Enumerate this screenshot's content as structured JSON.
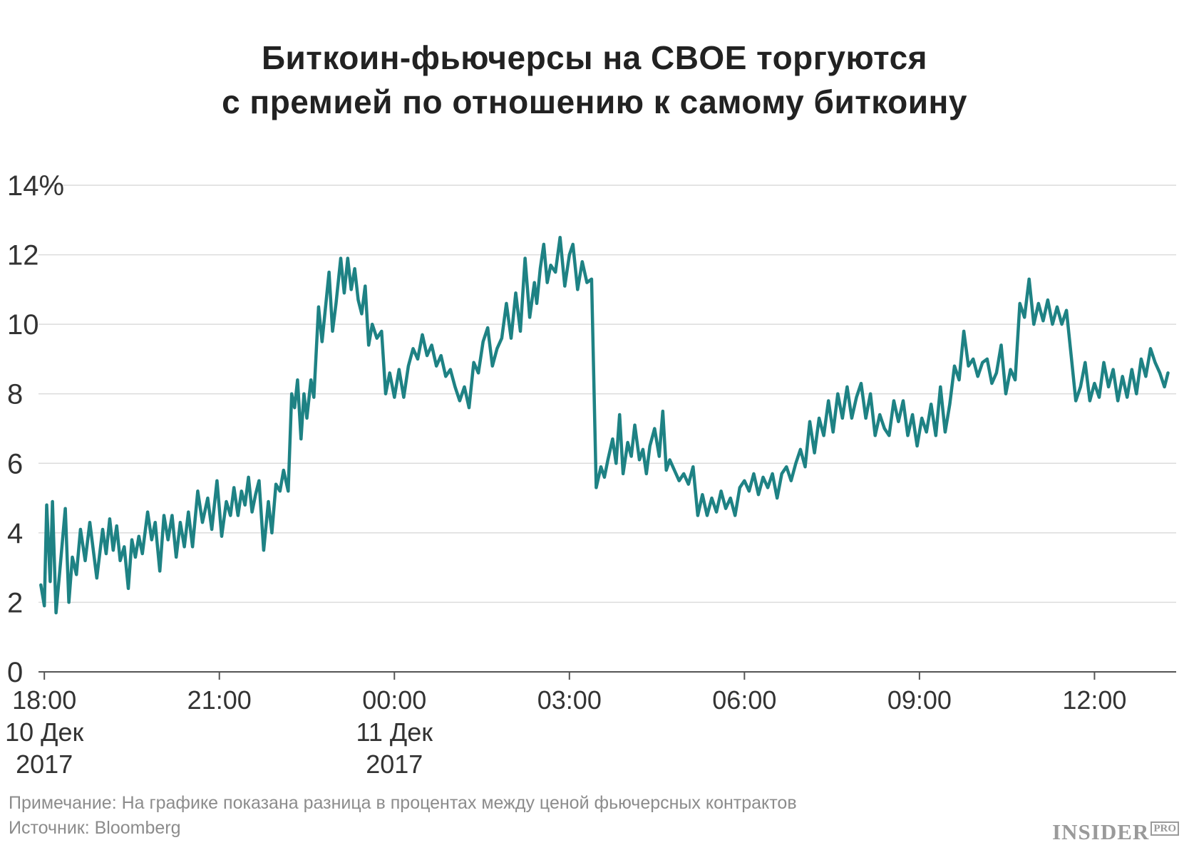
{
  "chart_data": {
    "type": "line",
    "title": [
      "Биткоин-фьючерсы на CBOE торгуются",
      "с премией по отношению к самому биткоину"
    ],
    "ylabel": "",
    "xlabel": "",
    "ylim": [
      0,
      14
    ],
    "y_ticks": [
      {
        "value": 0,
        "label": "0"
      },
      {
        "value": 2,
        "label": "2"
      },
      {
        "value": 4,
        "label": "4"
      },
      {
        "value": 6,
        "label": "6"
      },
      {
        "value": 8,
        "label": "8"
      },
      {
        "value": 10,
        "label": "10"
      },
      {
        "value": 12,
        "label": "12"
      },
      {
        "value": 14,
        "label": "14%"
      }
    ],
    "xlim": [
      -0.1,
      19.4
    ],
    "x_unit": "hours after 18:00 10 Dec 2017",
    "x_ticks": [
      {
        "value": 0,
        "lines": [
          "18:00",
          "10 Дек",
          "2017"
        ]
      },
      {
        "value": 3,
        "lines": [
          "21:00"
        ]
      },
      {
        "value": 6,
        "lines": [
          "00:00",
          "11 Дек",
          "2017"
        ]
      },
      {
        "value": 9,
        "lines": [
          "03:00"
        ]
      },
      {
        "value": 12,
        "lines": [
          "06:00"
        ]
      },
      {
        "value": 15,
        "lines": [
          "09:00"
        ]
      },
      {
        "value": 18,
        "lines": [
          "12:00"
        ]
      }
    ],
    "grid": true,
    "legend": "none",
    "series": [
      {
        "color": "#1e8284",
        "points": [
          [
            -0.06,
            2.5
          ],
          [
            0.0,
            1.9
          ],
          [
            0.04,
            4.8
          ],
          [
            0.1,
            2.6
          ],
          [
            0.14,
            4.9
          ],
          [
            0.2,
            1.7
          ],
          [
            0.27,
            3.0
          ],
          [
            0.36,
            4.7
          ],
          [
            0.42,
            2.0
          ],
          [
            0.48,
            3.3
          ],
          [
            0.55,
            2.8
          ],
          [
            0.62,
            4.1
          ],
          [
            0.7,
            3.2
          ],
          [
            0.78,
            4.3
          ],
          [
            0.9,
            2.7
          ],
          [
            1.0,
            4.1
          ],
          [
            1.06,
            3.4
          ],
          [
            1.12,
            4.4
          ],
          [
            1.18,
            3.5
          ],
          [
            1.24,
            4.2
          ],
          [
            1.3,
            3.2
          ],
          [
            1.37,
            3.6
          ],
          [
            1.44,
            2.4
          ],
          [
            1.5,
            3.8
          ],
          [
            1.56,
            3.3
          ],
          [
            1.62,
            3.9
          ],
          [
            1.68,
            3.4
          ],
          [
            1.77,
            4.6
          ],
          [
            1.84,
            3.8
          ],
          [
            1.9,
            4.3
          ],
          [
            1.98,
            2.9
          ],
          [
            2.05,
            4.5
          ],
          [
            2.12,
            3.8
          ],
          [
            2.19,
            4.5
          ],
          [
            2.26,
            3.3
          ],
          [
            2.33,
            4.3
          ],
          [
            2.4,
            3.6
          ],
          [
            2.47,
            4.6
          ],
          [
            2.54,
            3.6
          ],
          [
            2.63,
            5.2
          ],
          [
            2.71,
            4.3
          ],
          [
            2.8,
            5.0
          ],
          [
            2.87,
            4.1
          ],
          [
            2.96,
            5.5
          ],
          [
            3.04,
            3.9
          ],
          [
            3.12,
            4.9
          ],
          [
            3.19,
            4.5
          ],
          [
            3.25,
            5.3
          ],
          [
            3.32,
            4.5
          ],
          [
            3.38,
            5.2
          ],
          [
            3.44,
            4.8
          ],
          [
            3.5,
            5.6
          ],
          [
            3.56,
            4.6
          ],
          [
            3.62,
            5.1
          ],
          [
            3.68,
            5.5
          ],
          [
            3.76,
            3.5
          ],
          [
            3.84,
            4.9
          ],
          [
            3.9,
            4.0
          ],
          [
            3.97,
            5.4
          ],
          [
            4.04,
            5.2
          ],
          [
            4.1,
            5.8
          ],
          [
            4.18,
            5.2
          ],
          [
            4.24,
            8.0
          ],
          [
            4.29,
            7.6
          ],
          [
            4.34,
            8.4
          ],
          [
            4.4,
            6.7
          ],
          [
            4.45,
            8.0
          ],
          [
            4.5,
            7.3
          ],
          [
            4.57,
            8.4
          ],
          [
            4.62,
            7.9
          ],
          [
            4.7,
            10.5
          ],
          [
            4.76,
            9.5
          ],
          [
            4.82,
            10.5
          ],
          [
            4.88,
            11.5
          ],
          [
            4.94,
            9.8
          ],
          [
            5.0,
            10.6
          ],
          [
            5.08,
            11.9
          ],
          [
            5.14,
            10.9
          ],
          [
            5.2,
            11.9
          ],
          [
            5.26,
            11.0
          ],
          [
            5.32,
            11.6
          ],
          [
            5.38,
            10.7
          ],
          [
            5.44,
            10.3
          ],
          [
            5.5,
            11.1
          ],
          [
            5.56,
            9.4
          ],
          [
            5.62,
            10.0
          ],
          [
            5.7,
            9.6
          ],
          [
            5.78,
            9.8
          ],
          [
            5.85,
            8.0
          ],
          [
            5.92,
            8.6
          ],
          [
            6.0,
            7.9
          ],
          [
            6.08,
            8.7
          ],
          [
            6.16,
            7.9
          ],
          [
            6.24,
            8.8
          ],
          [
            6.32,
            9.3
          ],
          [
            6.4,
            9.0
          ],
          [
            6.48,
            9.7
          ],
          [
            6.56,
            9.1
          ],
          [
            6.64,
            9.4
          ],
          [
            6.72,
            8.8
          ],
          [
            6.8,
            9.1
          ],
          [
            6.88,
            8.5
          ],
          [
            6.96,
            8.7
          ],
          [
            7.04,
            8.2
          ],
          [
            7.12,
            7.8
          ],
          [
            7.2,
            8.2
          ],
          [
            7.28,
            7.6
          ],
          [
            7.36,
            8.9
          ],
          [
            7.44,
            8.6
          ],
          [
            7.52,
            9.5
          ],
          [
            7.6,
            9.9
          ],
          [
            7.68,
            8.8
          ],
          [
            7.76,
            9.3
          ],
          [
            7.84,
            9.6
          ],
          [
            7.92,
            10.6
          ],
          [
            8.0,
            9.6
          ],
          [
            8.08,
            10.9
          ],
          [
            8.16,
            9.8
          ],
          [
            8.24,
            11.9
          ],
          [
            8.32,
            10.2
          ],
          [
            8.4,
            11.2
          ],
          [
            8.44,
            10.6
          ],
          [
            8.5,
            11.6
          ],
          [
            8.56,
            12.3
          ],
          [
            8.62,
            11.2
          ],
          [
            8.68,
            11.7
          ],
          [
            8.76,
            11.5
          ],
          [
            8.84,
            12.5
          ],
          [
            8.92,
            11.1
          ],
          [
            9.0,
            12.0
          ],
          [
            9.06,
            12.3
          ],
          [
            9.14,
            11.0
          ],
          [
            9.22,
            11.8
          ],
          [
            9.3,
            11.2
          ],
          [
            9.38,
            11.3
          ],
          [
            9.46,
            5.3
          ],
          [
            9.54,
            5.9
          ],
          [
            9.6,
            5.6
          ],
          [
            9.66,
            6.1
          ],
          [
            9.74,
            6.7
          ],
          [
            9.8,
            6.0
          ],
          [
            9.86,
            7.4
          ],
          [
            9.92,
            5.7
          ],
          [
            10.0,
            6.6
          ],
          [
            10.06,
            6.2
          ],
          [
            10.12,
            7.1
          ],
          [
            10.2,
            6.1
          ],
          [
            10.26,
            6.4
          ],
          [
            10.32,
            5.7
          ],
          [
            10.38,
            6.5
          ],
          [
            10.46,
            7.0
          ],
          [
            10.54,
            6.2
          ],
          [
            10.6,
            7.5
          ],
          [
            10.66,
            5.8
          ],
          [
            10.72,
            6.1
          ],
          [
            10.8,
            5.8
          ],
          [
            10.88,
            5.5
          ],
          [
            10.96,
            5.7
          ],
          [
            11.04,
            5.4
          ],
          [
            11.12,
            5.9
          ],
          [
            11.2,
            4.5
          ],
          [
            11.28,
            5.1
          ],
          [
            11.36,
            4.5
          ],
          [
            11.44,
            5.0
          ],
          [
            11.52,
            4.6
          ],
          [
            11.6,
            5.2
          ],
          [
            11.68,
            4.7
          ],
          [
            11.76,
            5.0
          ],
          [
            11.84,
            4.5
          ],
          [
            11.92,
            5.3
          ],
          [
            12.0,
            5.5
          ],
          [
            12.08,
            5.2
          ],
          [
            12.16,
            5.7
          ],
          [
            12.24,
            5.1
          ],
          [
            12.32,
            5.6
          ],
          [
            12.4,
            5.3
          ],
          [
            12.48,
            5.7
          ],
          [
            12.56,
            5.0
          ],
          [
            12.64,
            5.7
          ],
          [
            12.72,
            5.9
          ],
          [
            12.8,
            5.5
          ],
          [
            12.88,
            6.0
          ],
          [
            12.96,
            6.4
          ],
          [
            13.04,
            5.9
          ],
          [
            13.12,
            7.2
          ],
          [
            13.2,
            6.3
          ],
          [
            13.28,
            7.3
          ],
          [
            13.36,
            6.8
          ],
          [
            13.44,
            7.8
          ],
          [
            13.52,
            6.9
          ],
          [
            13.6,
            8.0
          ],
          [
            13.68,
            7.3
          ],
          [
            13.76,
            8.2
          ],
          [
            13.84,
            7.3
          ],
          [
            13.92,
            7.9
          ],
          [
            14.0,
            8.3
          ],
          [
            14.08,
            7.3
          ],
          [
            14.16,
            8.0
          ],
          [
            14.24,
            6.8
          ],
          [
            14.32,
            7.4
          ],
          [
            14.4,
            7.0
          ],
          [
            14.48,
            6.8
          ],
          [
            14.56,
            7.8
          ],
          [
            14.64,
            7.2
          ],
          [
            14.72,
            7.8
          ],
          [
            14.8,
            6.8
          ],
          [
            14.88,
            7.4
          ],
          [
            14.96,
            6.5
          ],
          [
            15.04,
            7.3
          ],
          [
            15.12,
            6.9
          ],
          [
            15.2,
            7.7
          ],
          [
            15.28,
            6.8
          ],
          [
            15.36,
            8.2
          ],
          [
            15.44,
            6.9
          ],
          [
            15.52,
            7.7
          ],
          [
            15.6,
            8.8
          ],
          [
            15.68,
            8.4
          ],
          [
            15.76,
            9.8
          ],
          [
            15.84,
            8.8
          ],
          [
            15.92,
            9.0
          ],
          [
            16.0,
            8.5
          ],
          [
            16.08,
            8.9
          ],
          [
            16.16,
            9.0
          ],
          [
            16.24,
            8.3
          ],
          [
            16.32,
            8.6
          ],
          [
            16.4,
            9.4
          ],
          [
            16.48,
            8.0
          ],
          [
            16.56,
            8.7
          ],
          [
            16.64,
            8.4
          ],
          [
            16.72,
            10.6
          ],
          [
            16.8,
            10.2
          ],
          [
            16.88,
            11.3
          ],
          [
            16.96,
            10.0
          ],
          [
            17.04,
            10.6
          ],
          [
            17.12,
            10.1
          ],
          [
            17.2,
            10.7
          ],
          [
            17.28,
            10.0
          ],
          [
            17.36,
            10.5
          ],
          [
            17.44,
            10.0
          ],
          [
            17.52,
            10.4
          ],
          [
            17.6,
            9.1
          ],
          [
            17.68,
            7.8
          ],
          [
            17.76,
            8.2
          ],
          [
            17.84,
            8.9
          ],
          [
            17.92,
            7.8
          ],
          [
            18.0,
            8.3
          ],
          [
            18.08,
            7.9
          ],
          [
            18.16,
            8.9
          ],
          [
            18.24,
            8.2
          ],
          [
            18.32,
            8.7
          ],
          [
            18.4,
            7.8
          ],
          [
            18.48,
            8.5
          ],
          [
            18.56,
            7.9
          ],
          [
            18.64,
            8.7
          ],
          [
            18.72,
            8.0
          ],
          [
            18.8,
            9.0
          ],
          [
            18.88,
            8.5
          ],
          [
            18.96,
            9.3
          ],
          [
            19.04,
            8.9
          ],
          [
            19.12,
            8.6
          ],
          [
            19.2,
            8.2
          ],
          [
            19.26,
            8.6
          ]
        ]
      }
    ]
  },
  "footer": {
    "note": "Примечание: На графике показана разница в процентах между ценой фьючерсных контрактов",
    "source": "Источник: Bloomberg"
  },
  "logo": {
    "text": "INSIDER",
    "badge": "PRO"
  }
}
